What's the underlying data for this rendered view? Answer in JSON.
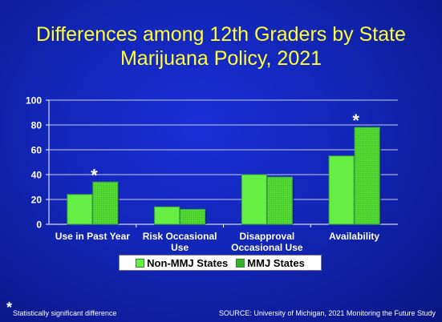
{
  "title_line1": "Differences among 12th Graders by State",
  "title_line2": "Marijuana Policy, 2021",
  "footnote_star": "*",
  "footnote_text": "Statistically significant difference",
  "source": "SOURCE: University of Michigan, 2021 Monitoring the Future Study",
  "colors": {
    "non_mmj": "#66ee44",
    "mmj": "#55dd33",
    "axis_text": "#ffffff",
    "title": "#ffff33"
  },
  "chart_data": {
    "type": "bar",
    "categories": [
      [
        "Use in Past Year"
      ],
      [
        "Risk Occasional",
        "Use"
      ],
      [
        "Disapproval",
        "Occasional Use"
      ],
      [
        "Availability"
      ]
    ],
    "series": [
      {
        "name": "Non-MMJ States",
        "values": [
          24,
          14,
          40,
          55
        ]
      },
      {
        "name": "MMJ States",
        "values": [
          34,
          12,
          38,
          78
        ]
      }
    ],
    "significant": [
      "*",
      "",
      "",
      "*"
    ],
    "ylim": [
      0,
      100
    ],
    "yticks": [
      0,
      20,
      40,
      60,
      80,
      100
    ],
    "grid": true,
    "legend_position": "bottom"
  }
}
